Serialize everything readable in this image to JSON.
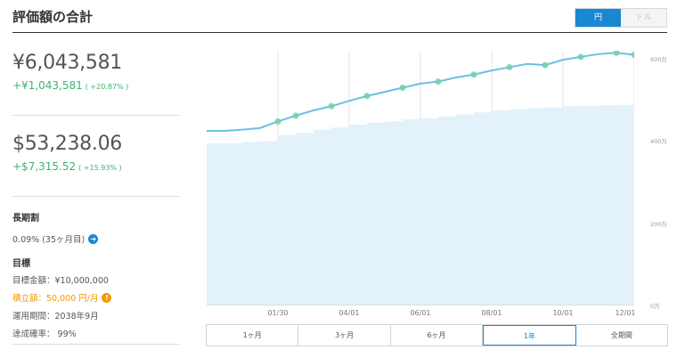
{
  "header": {
    "title": "評価額の合計"
  },
  "currency_toggle": {
    "yen": "円",
    "dollar": "ドル"
  },
  "yen_total": {
    "amount": "¥6,043,581",
    "gain": "+¥1,043,581",
    "gain_pct": "( +20.87% )"
  },
  "usd_total": {
    "amount": "$53,238.06",
    "gain": "+$7,315.52",
    "gain_pct": "( +15.93% )"
  },
  "long_term": {
    "label": "長期割",
    "value": "0.09% (35ヶ月目)"
  },
  "goal": {
    "label": "目標",
    "target": "目標金額：¥10,000,000",
    "monthly": "積立額：50,000 円/月",
    "period": "運用期間：2038年9月",
    "probability": "達成確率： 99%"
  },
  "periods": [
    "1ヶ月",
    "3ヶ月",
    "6ヶ月",
    "1年",
    "全期間"
  ],
  "active_period": "1年",
  "colors": {
    "accent": "#1a87d2",
    "gain": "#3bb371",
    "warn": "#f39800",
    "line": "#6cc0e3",
    "area": "#e3f1fa",
    "marker": "#72d0a4"
  },
  "chart_data": {
    "type": "area",
    "x_tick_labels": [
      "01/30",
      "04/01",
      "06/01",
      "08/01",
      "10/01",
      "12/01"
    ],
    "y_tick_labels": [
      "0万",
      "200万",
      "400万",
      "600万"
    ],
    "ylim": [
      0,
      600
    ],
    "y_unit": "万",
    "x": [
      "12/01",
      "12/15",
      "01/01",
      "01/15",
      "01/30",
      "02/15",
      "03/01",
      "03/15",
      "04/01",
      "04/15",
      "05/01",
      "05/15",
      "06/01",
      "06/15",
      "07/01",
      "07/15",
      "08/01",
      "08/15",
      "09/01",
      "09/15",
      "10/01",
      "10/15",
      "11/01",
      "11/15",
      "12/01"
    ],
    "series": [
      {
        "values": [
          425,
          425,
          428,
          432,
          448,
          462,
          475,
          485,
          498,
          510,
          520,
          530,
          540,
          545,
          555,
          562,
          572,
          580,
          588,
          585,
          598,
          605,
          612,
          615,
          610
        ]
      },
      {
        "values": [
          395,
          395,
          398,
          400,
          415,
          420,
          428,
          433,
          440,
          445,
          448,
          453,
          455,
          460,
          465,
          470,
          475,
          478,
          480,
          482,
          485,
          486,
          487,
          488,
          489
        ]
      }
    ]
  }
}
